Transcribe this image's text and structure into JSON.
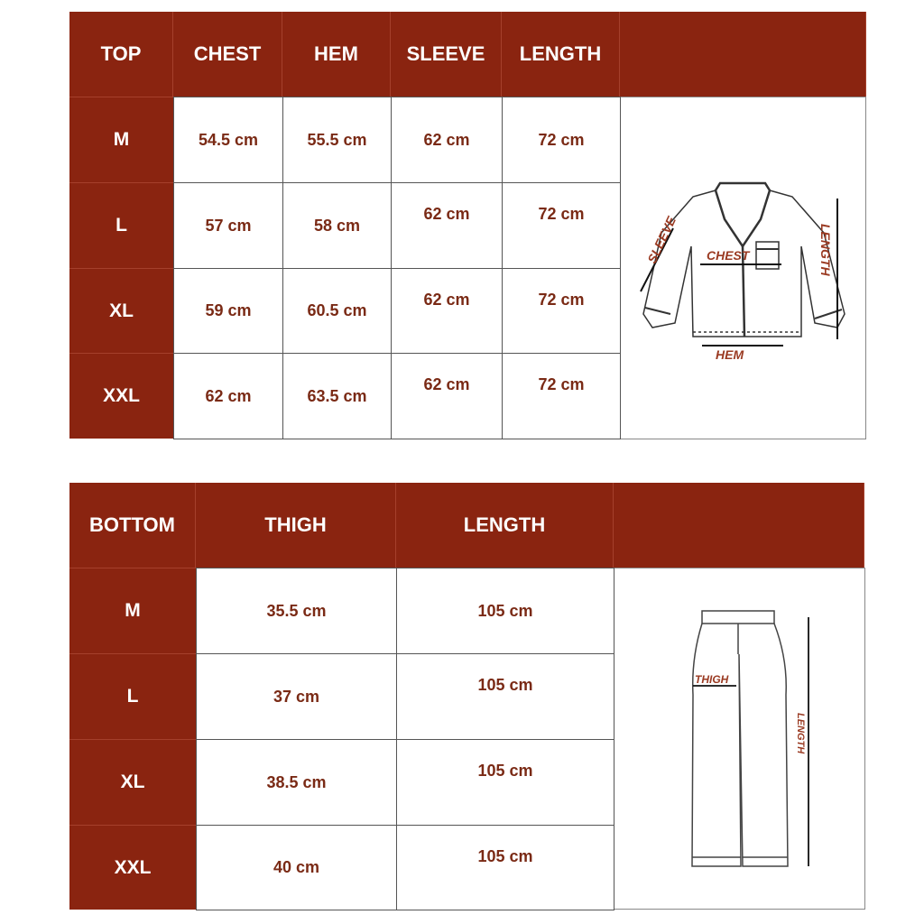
{
  "colors": {
    "header_bg": "#8a2410",
    "value_text": "#7a2a15"
  },
  "top_table": {
    "headers": [
      "TOP",
      "CHEST",
      "HEM",
      "SLEEVE",
      "LENGTH",
      ""
    ],
    "rows": [
      {
        "size": "M",
        "values": [
          "54.5 cm",
          "55.5 cm",
          "62 cm",
          "72 cm"
        ]
      },
      {
        "size": "L",
        "values": [
          "57 cm",
          "58 cm",
          "62 cm",
          "72 cm"
        ]
      },
      {
        "size": "XL",
        "values": [
          "59 cm",
          "60.5 cm",
          "62 cm",
          "72 cm"
        ]
      },
      {
        "size": "XXL",
        "values": [
          "62 cm",
          "63.5 cm",
          "62 cm",
          "72 cm"
        ]
      }
    ],
    "illustration": {
      "sleeve": "SLEEVE",
      "chest": "CHEST",
      "hem": "HEM",
      "length": "LENGTH"
    }
  },
  "bottom_table": {
    "headers": [
      "BOTTOM",
      "THIGH",
      "LENGTH",
      ""
    ],
    "rows": [
      {
        "size": "M",
        "values": [
          "35.5 cm",
          "105 cm"
        ]
      },
      {
        "size": "L",
        "values": [
          "37 cm",
          "105 cm"
        ]
      },
      {
        "size": "XL",
        "values": [
          "38.5 cm",
          "105 cm"
        ]
      },
      {
        "size": "XXL",
        "values": [
          "40 cm",
          "105 cm"
        ]
      }
    ],
    "illustration": {
      "thigh": "THIGH",
      "length": "LENGTH"
    }
  }
}
